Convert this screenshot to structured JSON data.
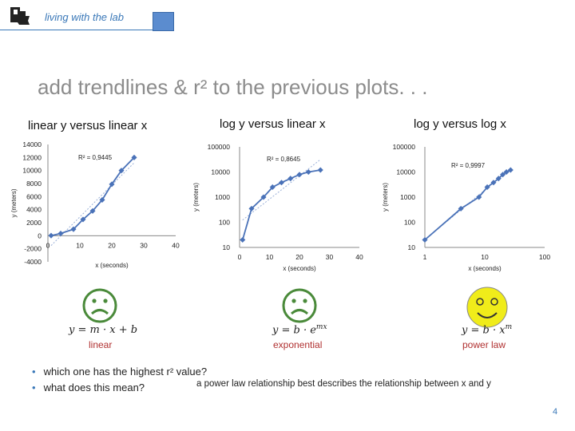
{
  "header": {
    "brand": "living with the lab"
  },
  "slide": {
    "title": "add trendlines & r² to the previous plots. . .",
    "bullets": [
      "which one has the highest r² value?",
      "what does this mean?"
    ],
    "answer": "a power law relationship best describes the relationship between x and y",
    "page_number": "4"
  },
  "colors": {
    "series": "#4a72b8",
    "face_sad": "#4a8a3a",
    "face_happy": "#f0ec1a",
    "model_label": "#b03030"
  },
  "panels": [
    {
      "heading": "linear y versus linear x",
      "model": "linear",
      "formula": "y = m · x + b",
      "face": "sad"
    },
    {
      "heading": "log y versus linear x",
      "model": "exponential",
      "formula": "y = b · e^{mx}",
      "face": "sad"
    },
    {
      "heading": "log y versus log x",
      "model": "power law",
      "formula": "y = b · x^m",
      "face": "happy"
    }
  ],
  "chart_data": [
    {
      "type": "line",
      "title": "linear y versus linear x",
      "xlabel": "x (seconds)",
      "ylabel": "y (meters)",
      "xlim": [
        0,
        40
      ],
      "ylim": [
        -4000,
        14000
      ],
      "x_scale": "linear",
      "y_scale": "linear",
      "x_ticks": [
        "0",
        "10",
        "20",
        "30",
        "40"
      ],
      "y_ticks": [
        "-4000",
        "-2000",
        "0",
        "2000",
        "4000",
        "6000",
        "8000",
        "10000",
        "12000",
        "14000"
      ],
      "r2_label": "R² = 0,9445",
      "trendline": "linear",
      "x": [
        1,
        4,
        8,
        11,
        14,
        17,
        20,
        23,
        27
      ],
      "y": [
        20,
        350,
        1000,
        2500,
        3800,
        5500,
        7900,
        10000,
        12000
      ]
    },
    {
      "type": "line",
      "title": "log y versus linear x",
      "xlabel": "x (seconds)",
      "ylabel": "y (meters)",
      "xlim": [
        0,
        40
      ],
      "ylim": [
        10,
        100000
      ],
      "x_scale": "linear",
      "y_scale": "log",
      "x_ticks": [
        "0",
        "10",
        "20",
        "30",
        "40"
      ],
      "y_ticks": [
        "10",
        "100",
        "1000",
        "10000",
        "100000"
      ],
      "r2_label": "R² = 0,8645",
      "trendline": "exponential",
      "x": [
        1,
        4,
        8,
        11,
        14,
        17,
        20,
        23,
        27
      ],
      "y": [
        20,
        350,
        1000,
        2500,
        3800,
        5500,
        7900,
        10000,
        12000
      ]
    },
    {
      "type": "line",
      "title": "log y versus log x",
      "xlabel": "x (seconds)",
      "ylabel": "y (meters)",
      "xlim": [
        1,
        100
      ],
      "ylim": [
        10,
        100000
      ],
      "x_scale": "log",
      "y_scale": "log",
      "x_ticks": [
        "1",
        "10",
        "100"
      ],
      "y_ticks": [
        "10",
        "100",
        "1000",
        "10000",
        "100000"
      ],
      "r2_label": "R² = 0,9997",
      "trendline": "power",
      "x": [
        1,
        4,
        8,
        11,
        14,
        17,
        20,
        23,
        27
      ],
      "y": [
        20,
        350,
        1000,
        2500,
        3800,
        5500,
        7900,
        10000,
        12000
      ]
    }
  ]
}
